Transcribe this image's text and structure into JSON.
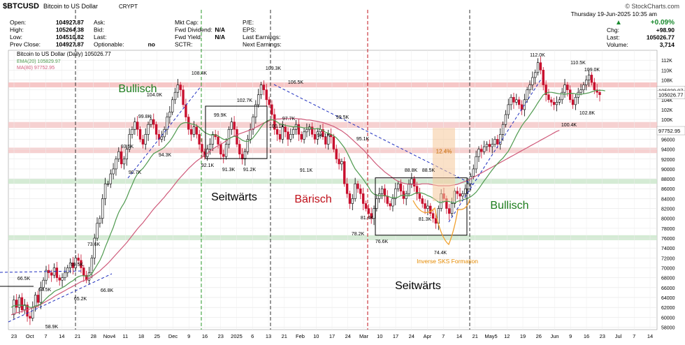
{
  "header": {
    "symbol": "$BTCUSD",
    "name": "Bitcoin to US Dollar",
    "exchange": "CRYPT",
    "watermark": "© StockCharts.com",
    "date": "Thursday  19-Jun-2025  10:35 am",
    "change_pct": "+0.09%",
    "change_color": "#1a8a2e",
    "fields": [
      {
        "label": "Open:",
        "value": "104927.87"
      },
      {
        "label": "High:",
        "value": "105264.38"
      },
      {
        "label": "Low:",
        "value": "104510.82"
      },
      {
        "label": "Prev Close:",
        "value": "104927.87"
      }
    ],
    "fields2": [
      {
        "label": "Ask:",
        "value": ""
      },
      {
        "label": "Bid:",
        "value": ""
      },
      {
        "label": "Last:",
        "value": ""
      },
      {
        "label": "Optionable:",
        "value": "no"
      }
    ],
    "fields3": [
      {
        "label": "Mkt Cap:",
        "value": ""
      },
      {
        "label": "Fwd Dividend:",
        "value": "N/A"
      },
      {
        "label": "Fwd Yield:",
        "value": "N/A"
      },
      {
        "label": "SCTR:",
        "value": ""
      }
    ],
    "fields4": [
      {
        "label": "P/E:",
        "value": ""
      },
      {
        "label": "EPS:",
        "value": ""
      },
      {
        "label": "Last Earnings:",
        "value": ""
      },
      {
        "label": "Next Earnings:",
        "value": ""
      }
    ],
    "fields5": [
      {
        "label": "Chg:",
        "value": "+98.90"
      },
      {
        "label": "Last:",
        "value": "105026.77"
      },
      {
        "label": "Volume:",
        "value": "3,714"
      }
    ]
  },
  "legend": {
    "title": "Bitcoin to US Dollar (Daily) 105026.77",
    "ema": "EMA(20) 105829.97",
    "ma": "MA(80) 97752.95",
    "ema_color": "#4f9a4f",
    "ma_color": "#cf5a7a"
  },
  "chart_data": {
    "type": "candlestick",
    "y_ticks": [
      58000,
      60000,
      62000,
      64000,
      66000,
      68000,
      70000,
      72000,
      74000,
      76000,
      78000,
      80000,
      82000,
      84000,
      86000,
      88000,
      90000,
      92000,
      94000,
      96000,
      98000,
      100000,
      102000,
      104000,
      106000,
      108000,
      110000,
      112000
    ],
    "y_tick_labels": [
      "58000",
      "60000",
      "62000",
      "64000",
      "66000",
      "68000",
      "70000",
      "72000",
      "74000",
      "76000",
      "78000",
      "80000",
      "82000",
      "84000",
      "86000",
      "88000",
      "90000",
      "92000",
      "94000",
      "96000",
      "98000",
      "100K",
      "102K",
      "104K",
      "106K",
      "108K",
      "110K",
      "112K"
    ],
    "last_value_label": "105026.77",
    "ma_value_label": "97752.95",
    "ema_value_label": "105829.97",
    "x_labels": [
      "23",
      "Oct",
      "7",
      "14",
      "21",
      "28",
      "Nov4",
      "11",
      "18",
      "25",
      "Dec",
      "9",
      "16",
      "23",
      "2025",
      "6",
      "13",
      "21",
      "Feb",
      "10",
      "17",
      "24",
      "Mar",
      "10",
      "17",
      "24",
      "Apr",
      "7",
      "14",
      "21",
      "May5",
      "12",
      "19",
      "26",
      "Jun",
      "9",
      "16",
      "23",
      "Jul",
      "7",
      "14"
    ],
    "close_path": [
      60.5,
      63.5,
      62,
      64,
      61.5,
      62.5,
      60.2,
      59.8,
      62,
      64.5,
      63,
      66,
      67.5,
      69.5,
      69,
      68.5,
      70,
      68,
      67.5,
      68,
      69,
      70,
      71,
      70,
      72,
      71.5,
      70,
      68.5,
      67.5,
      69,
      72,
      76,
      79,
      80,
      84,
      87,
      87,
      89,
      90,
      92,
      93.5,
      91,
      92,
      94,
      97,
      98,
      99.5,
      98,
      96,
      95,
      97,
      99,
      100,
      99,
      97,
      96,
      96.5,
      98,
      100.5,
      101.5,
      104,
      105.5,
      107,
      106,
      103,
      100.5,
      98,
      97,
      98.5,
      97,
      95,
      93.5,
      92.5,
      94,
      95,
      97,
      96.5,
      95,
      93,
      92.5,
      95,
      98,
      99.5,
      98,
      95,
      93,
      92,
      93.5,
      96,
      98,
      100.5,
      103,
      105,
      107,
      106,
      104,
      103,
      101,
      98,
      97,
      96,
      98.5,
      97.5,
      96,
      97,
      98,
      99,
      97,
      96,
      97.5,
      98,
      98.5,
      97,
      96,
      97.5,
      98,
      96.5,
      95,
      97,
      96.5,
      94,
      92,
      91,
      91.5,
      87,
      85,
      83,
      84,
      87,
      86,
      85,
      83,
      82,
      81,
      80,
      82,
      84,
      85,
      86,
      84.5,
      83,
      82.5,
      84,
      86,
      87,
      85.5,
      84,
      85,
      87,
      88,
      86.5,
      85,
      84,
      83,
      82,
      82.5,
      81,
      80,
      79,
      82,
      85,
      84,
      82,
      81,
      83,
      85.5,
      85,
      84.5,
      85,
      86,
      87,
      88.5,
      90,
      92.5,
      94,
      93.5,
      94.5,
      95,
      94.5,
      95,
      96,
      95,
      97,
      99,
      101,
      103,
      104.5,
      103.5,
      104,
      103,
      102,
      104,
      106,
      107,
      108.5,
      109.5,
      111.5,
      110,
      107,
      105,
      104,
      103.5,
      103,
      103.5,
      104,
      105.5,
      107,
      106,
      104,
      103,
      104.5,
      105.5,
      106,
      107,
      108,
      109,
      107.5,
      106,
      105.5,
      105
    ],
    "ema_path": [
      62,
      62.3,
      62.4,
      62.5,
      62.4,
      62.4,
      62.2,
      62,
      62,
      62.3,
      62.4,
      62.7,
      63.2,
      63.8,
      64.3,
      64.7,
      65.2,
      65.5,
      65.7,
      66,
      66.3,
      66.7,
      67.1,
      67.4,
      67.9,
      68.2,
      68.4,
      68.4,
      68.3,
      68.4,
      68.8,
      69.7,
      70.6,
      71.5,
      72.7,
      74.2,
      75.5,
      76.9,
      78.2,
      79.8,
      81.2,
      82.2,
      83.1,
      84.2,
      85.6,
      86.8,
      88.1,
      89,
      89.6,
      90.1,
      90.8,
      91.6,
      92.4,
      93.1,
      93.4,
      93.7,
      94,
      94.4,
      95,
      95.6,
      96.4,
      97.3,
      98.3,
      99,
      99.3,
      99.4,
      99.3,
      99.1,
      99,
      98.8,
      98.4,
      97.9,
      97.4,
      97.1,
      96.9,
      96.9,
      96.9,
      96.7,
      96.3,
      96,
      95.9,
      96.1,
      96.4,
      96.6,
      96.5,
      96.2,
      95.8,
      95.6,
      95.6,
      95.8,
      96.3,
      97,
      97.7,
      98.5,
      99.2,
      99.6,
      99.9,
      100,
      99.8,
      99.5,
      99.1,
      99,
      98.8,
      98.7,
      98.6,
      98.5,
      98.6,
      98.5,
      98.4,
      98.3,
      98.3,
      98.3,
      98.2,
      98.1,
      98.2,
      98.1,
      97.8,
      97.4,
      97.2,
      97,
      96.7,
      96.3,
      95.7,
      95,
      94.3,
      93.3,
      92.2,
      91,
      90,
      89.3,
      88.6,
      87.9,
      87.1,
      86.3,
      85.4,
      84.9,
      84.7,
      84.6,
      84.6,
      84.6,
      84.5,
      84.3,
      84.2,
      84.2,
      84.3,
      84.6,
      84.7,
      84.6,
      84.6,
      84.7,
      85,
      85.2,
      85.2,
      85.1,
      84.9,
      84.6,
      84.4,
      84.1,
      83.7,
      83.3,
      83.2,
      83.4,
      83.5,
      83.4,
      83.2,
      83.1,
      83.4,
      83.6,
      83.7,
      83.9,
      84.1,
      84.4,
      84.8,
      85.3,
      86,
      86.8,
      87.6,
      88.3,
      89.1,
      89.8,
      90.5,
      91.1,
      91.7,
      92.2,
      92.9,
      93.6,
      94.6,
      95.7,
      96.8,
      97.8,
      98.7,
      99.5,
      100.1,
      100.9,
      101.7,
      102.5,
      103.4,
      104.2,
      105,
      105.3,
      105.5,
      105.5,
      105.4,
      105.3,
      105.2,
      105.2,
      105.1,
      105.2,
      105.3,
      105.3,
      105.2,
      105.1,
      105.1,
      105.2,
      105.3,
      105.4,
      105.6,
      105.8,
      105.9,
      105.9,
      105.9,
      105.8
    ],
    "ma_path": [
      60.5,
      60.7,
      60.9,
      61,
      61.2,
      61.4,
      61.5,
      61.7,
      61.9,
      62.1,
      62.3,
      62.6,
      62.9,
      63.2,
      63.5,
      63.8,
      64.2,
      64.5,
      64.8,
      65.1,
      65.4,
      65.7,
      66,
      66.3,
      66.6,
      66.9,
      67.2,
      67.4,
      67.6,
      67.9,
      68.2,
      68.6,
      69,
      69.4,
      69.9,
      70.4,
      70.9,
      71.5,
      72.1,
      72.7,
      73.3,
      73.9,
      74.5,
      75.1,
      75.8,
      76.5,
      77.2,
      77.9,
      78.5,
      79.1,
      79.8,
      80.5,
      81.2,
      81.9,
      82.5,
      83.1,
      83.7,
      84.3,
      85,
      85.6,
      86.3,
      87,
      87.7,
      88.3,
      88.9,
      89.5,
      90.1,
      90.6,
      91.1,
      91.6,
      92,
      92.4,
      92.8,
      93.2,
      93.6,
      94,
      94.4,
      94.7,
      95,
      95.3,
      95.7,
      96.1,
      96.4,
      96.7,
      96.9,
      97.1,
      97.3,
      97.5,
      97.7,
      97.9,
      98.1,
      98.4,
      98.7,
      99,
      99.3,
      99.5,
      99.7,
      99.9,
      100,
      100.1,
      100.1,
      100.2,
      100.2,
      100.2,
      100.2,
      100.2,
      100.2,
      100.1,
      100.1,
      100,
      99.9,
      99.9,
      99.8,
      99.7,
      99.6,
      99.5,
      99.4,
      99.2,
      99,
      98.8,
      98.6,
      98.3,
      98,
      97.7,
      97.3,
      96.9,
      96.4,
      95.9,
      95.4,
      94.9,
      94.4,
      93.9,
      93.3,
      92.7,
      92.1,
      91.5,
      90.9,
      90.4,
      89.9,
      89.4,
      89,
      88.6,
      88.2,
      87.8,
      87.5,
      87.3,
      87.1,
      87,
      86.9,
      86.9,
      86.9,
      86.9,
      86.9,
      87,
      87,
      87,
      86.9,
      86.8,
      86.7,
      86.6,
      86.6,
      86.6,
      86.6,
      86.6,
      86.7,
      86.8,
      86.9,
      87.1,
      87.3,
      87.5,
      87.7,
      88,
      88.3,
      88.6,
      88.9,
      89.2,
      89.5,
      89.8,
      90.1,
      90.4,
      90.7,
      91,
      91.3,
      91.6,
      91.9,
      92.2,
      92.5,
      92.8,
      93.1,
      93.4,
      93.7,
      94,
      94.3,
      94.6,
      94.9,
      95.2,
      95.5,
      95.8,
      96.1,
      96.4,
      96.7,
      97,
      97.3,
      97.6,
      97.8
    ],
    "annotations": {
      "phase_labels": [
        {
          "text": "Bullisch",
          "color": "#1e7d1e"
        },
        {
          "text": "Seitwärts",
          "color": "#000000"
        },
        {
          "text": "Bärisch",
          "color": "#c0101a"
        },
        {
          "text": "Bullisch",
          "color": "#1e7d1e"
        },
        {
          "text": "Seitwärts",
          "color": "#000000"
        }
      ],
      "price_labels": [
        "66.5K",
        "64.5K",
        "58.9K",
        "69.5K",
        "65.2K",
        "73.6K",
        "66.8K",
        "93.5K",
        "90.7K",
        "99.8K",
        "104.0K",
        "94.3K",
        "108.4K",
        "92.1K",
        "99.9K",
        "91.3K",
        "102.7K",
        "91.2K",
        "109.3K",
        "100.1K",
        "106.5K",
        "97.7K",
        "91.1K",
        "94.1K",
        "99.5K",
        "95.1K",
        "81.4K",
        "78.2K",
        "88.8K",
        "88.5K",
        "76.6K",
        "81.3K",
        "74.4K",
        "112.0K",
        "110.5K",
        "109.0K",
        "102.8K",
        "100.4K"
      ],
      "pattern_label": "Inverse SKS Formation",
      "pct_label": "12.4%"
    }
  }
}
